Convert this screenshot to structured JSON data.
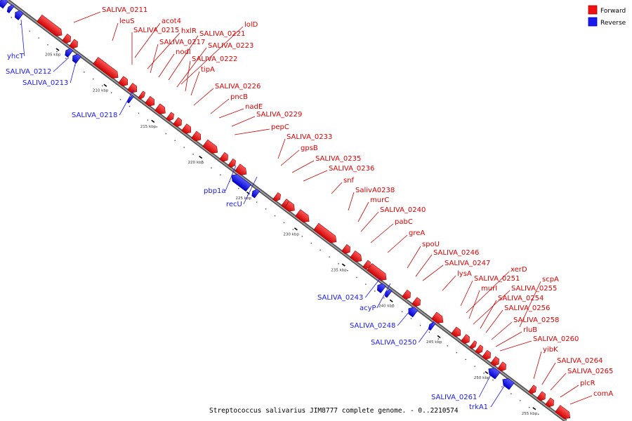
{
  "legend": {
    "forward_label": "Forward",
    "reverse_label": "Reverse",
    "forward_color": "#ee1111",
    "reverse_color": "#1a1aee"
  },
  "caption": "Streptococcus salivarius JIM8777 complete genome. - 0..2210574",
  "ticks": [
    "205 kbp",
    "210 kbp",
    "215 kbp",
    "220 kbp",
    "225 kbp",
    "230 kbp",
    "235 kbp",
    "240 kbp",
    "245 kbp",
    "250 kbp",
    "255 kbp"
  ],
  "forward_genes": [
    "SALIVA_0211",
    "leuS",
    "acot4",
    "SALIVA_0215",
    "hxlR",
    "SALIVA_0217",
    "nodI",
    "SALIVA_0221",
    "lolD",
    "SALIVA_0223",
    "SALIVA_0222",
    "tipA",
    "SALIVA_0226",
    "pncB",
    "nadE",
    "SALIVA_0229",
    "pepC",
    "SALIVA_0233",
    "gpsB",
    "SALIVA_0235",
    "SALIVA_0236",
    "snf",
    "SalivA0238",
    "murC",
    "SALIVA_0240",
    "pabC",
    "greA",
    "spoU",
    "SALIVA_0246",
    "SALIVA_0247",
    "lysA",
    "SALIVA_0251",
    "xerD",
    "murI",
    "scpA",
    "SALIVA_0255",
    "SALIVA_0254",
    "SALIVA_0256",
    "SALIVA_0258",
    "rluB",
    "SALIVA_0260",
    "yibK",
    "SALIVA_0264",
    "SALIVA_0265",
    "plcR",
    "comA"
  ],
  "reverse_genes": [
    "yhcT",
    "SALIVA_0212",
    "SALIVA_0213",
    "SALIVA_0218",
    "pbp1a",
    "recU",
    "SALIVA_0243",
    "acyP",
    "SALIVA_0248",
    "SALIVA_0250",
    "SALIVA_0261",
    "trkA1"
  ]
}
